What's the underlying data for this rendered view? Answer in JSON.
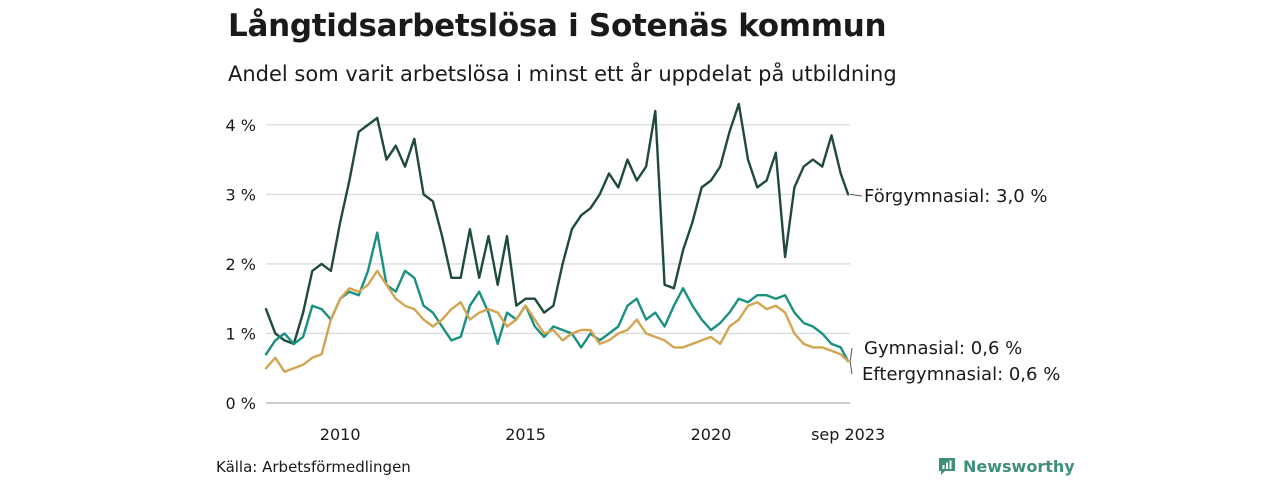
{
  "title": "Långtidsarbetslösa i Sotenäs kommun",
  "subtitle": "Andel som varit arbetslösa i minst ett år uppdelat på utbildning",
  "source": "Källa: Arbetsförmedlingen",
  "brand": "Newsworthy",
  "chart_data": {
    "type": "line",
    "title": "Långtidsarbetslösa i Sotenäs kommun",
    "xlabel": "",
    "ylabel": "",
    "xlim": [
      2008.0,
      2023.75
    ],
    "ylim": [
      0,
      4.3
    ],
    "y_ticks": [
      0,
      1,
      2,
      3,
      4
    ],
    "y_tick_labels": [
      "0 %",
      "1 %",
      "2 %",
      "3 %",
      "4 %"
    ],
    "x_ticks": [
      2010,
      2015,
      2020,
      2023.7
    ],
    "x_tick_labels": [
      "2010",
      "2015",
      "2020",
      "sep 2023"
    ],
    "grid": true,
    "series": [
      {
        "name": "Förgymnasial",
        "end_label": "Förgymnasial: 3,0 %",
        "color": "#1f4a3f",
        "x": [
          2008.0,
          2008.25,
          2008.5,
          2008.75,
          2009.0,
          2009.25,
          2009.5,
          2009.75,
          2010.0,
          2010.25,
          2010.5,
          2010.75,
          2011.0,
          2011.25,
          2011.5,
          2011.75,
          2012.0,
          2012.25,
          2012.5,
          2012.75,
          2013.0,
          2013.25,
          2013.5,
          2013.75,
          2014.0,
          2014.25,
          2014.5,
          2014.75,
          2015.0,
          2015.25,
          2015.5,
          2015.75,
          2016.0,
          2016.25,
          2016.5,
          2016.75,
          2017.0,
          2017.25,
          2017.5,
          2017.75,
          2018.0,
          2018.25,
          2018.5,
          2018.75,
          2019.0,
          2019.25,
          2019.5,
          2019.75,
          2020.0,
          2020.25,
          2020.5,
          2020.75,
          2021.0,
          2021.25,
          2021.5,
          2021.75,
          2022.0,
          2022.25,
          2022.5,
          2022.75,
          2023.0,
          2023.25,
          2023.5,
          2023.7
        ],
        "values": [
          1.35,
          1.0,
          0.9,
          0.85,
          1.3,
          1.9,
          2.0,
          1.9,
          2.6,
          3.2,
          3.9,
          4.0,
          4.1,
          3.5,
          3.7,
          3.4,
          3.8,
          3.0,
          2.9,
          2.4,
          1.8,
          1.8,
          2.5,
          1.8,
          2.4,
          1.7,
          2.4,
          1.4,
          1.5,
          1.5,
          1.3,
          1.4,
          2.0,
          2.5,
          2.7,
          2.8,
          3.0,
          3.3,
          3.1,
          3.5,
          3.2,
          3.4,
          4.2,
          1.7,
          1.65,
          2.2,
          2.6,
          3.1,
          3.2,
          3.4,
          3.9,
          4.3,
          3.5,
          3.1,
          3.2,
          3.6,
          2.1,
          3.1,
          3.4,
          3.5,
          3.4,
          3.85,
          3.3,
          3.0
        ]
      },
      {
        "name": "Gymnasial",
        "end_label": "Gymnasial: 0,6 %",
        "color": "#1a9080",
        "x": [
          2008.0,
          2008.25,
          2008.5,
          2008.75,
          2009.0,
          2009.25,
          2009.5,
          2009.75,
          2010.0,
          2010.25,
          2010.5,
          2010.75,
          2011.0,
          2011.25,
          2011.5,
          2011.75,
          2012.0,
          2012.25,
          2012.5,
          2012.75,
          2013.0,
          2013.25,
          2013.5,
          2013.75,
          2014.0,
          2014.25,
          2014.5,
          2014.75,
          2015.0,
          2015.25,
          2015.5,
          2015.75,
          2016.0,
          2016.25,
          2016.5,
          2016.75,
          2017.0,
          2017.25,
          2017.5,
          2017.75,
          2018.0,
          2018.25,
          2018.5,
          2018.75,
          2019.0,
          2019.25,
          2019.5,
          2019.75,
          2020.0,
          2020.25,
          2020.5,
          2020.75,
          2021.0,
          2021.25,
          2021.5,
          2021.75,
          2022.0,
          2022.25,
          2022.5,
          2022.75,
          2023.0,
          2023.25,
          2023.5,
          2023.7
        ],
        "values": [
          0.7,
          0.9,
          1.0,
          0.85,
          0.95,
          1.4,
          1.35,
          1.2,
          1.5,
          1.6,
          1.55,
          1.9,
          2.45,
          1.7,
          1.6,
          1.9,
          1.8,
          1.4,
          1.3,
          1.1,
          0.9,
          0.95,
          1.4,
          1.6,
          1.3,
          0.85,
          1.3,
          1.2,
          1.4,
          1.1,
          0.95,
          1.1,
          1.05,
          1.0,
          0.8,
          1.0,
          0.9,
          1.0,
          1.1,
          1.4,
          1.5,
          1.2,
          1.3,
          1.1,
          1.4,
          1.65,
          1.4,
          1.2,
          1.05,
          1.15,
          1.3,
          1.5,
          1.45,
          1.55,
          1.55,
          1.5,
          1.55,
          1.3,
          1.15,
          1.1,
          1.0,
          0.85,
          0.8,
          0.6
        ]
      },
      {
        "name": "Eftergymnasial",
        "end_label": "Eftergymnasial: 0,6 %",
        "color": "#d4a551",
        "x": [
          2008.0,
          2008.25,
          2008.5,
          2008.75,
          2009.0,
          2009.25,
          2009.5,
          2009.75,
          2010.0,
          2010.25,
          2010.5,
          2010.75,
          2011.0,
          2011.25,
          2011.5,
          2011.75,
          2012.0,
          2012.25,
          2012.5,
          2012.75,
          2013.0,
          2013.25,
          2013.5,
          2013.75,
          2014.0,
          2014.25,
          2014.5,
          2014.75,
          2015.0,
          2015.25,
          2015.5,
          2015.75,
          2016.0,
          2016.25,
          2016.5,
          2016.75,
          2017.0,
          2017.25,
          2017.5,
          2017.75,
          2018.0,
          2018.25,
          2018.5,
          2018.75,
          2019.0,
          2019.25,
          2019.5,
          2019.75,
          2020.0,
          2020.25,
          2020.5,
          2020.75,
          2021.0,
          2021.25,
          2021.5,
          2021.75,
          2022.0,
          2022.25,
          2022.5,
          2022.75,
          2023.0,
          2023.25,
          2023.5,
          2023.7
        ],
        "values": [
          0.5,
          0.65,
          0.45,
          0.5,
          0.55,
          0.65,
          0.7,
          1.2,
          1.5,
          1.65,
          1.6,
          1.7,
          1.9,
          1.7,
          1.5,
          1.4,
          1.35,
          1.2,
          1.1,
          1.2,
          1.35,
          1.45,
          1.2,
          1.3,
          1.35,
          1.3,
          1.1,
          1.2,
          1.4,
          1.2,
          1.0,
          1.05,
          0.9,
          1.0,
          1.05,
          1.05,
          0.85,
          0.9,
          1.0,
          1.05,
          1.2,
          1.0,
          0.95,
          0.9,
          0.8,
          0.8,
          0.85,
          0.9,
          0.95,
          0.85,
          1.1,
          1.2,
          1.4,
          1.45,
          1.35,
          1.4,
          1.3,
          1.0,
          0.85,
          0.8,
          0.8,
          0.75,
          0.7,
          0.6
        ]
      }
    ]
  }
}
